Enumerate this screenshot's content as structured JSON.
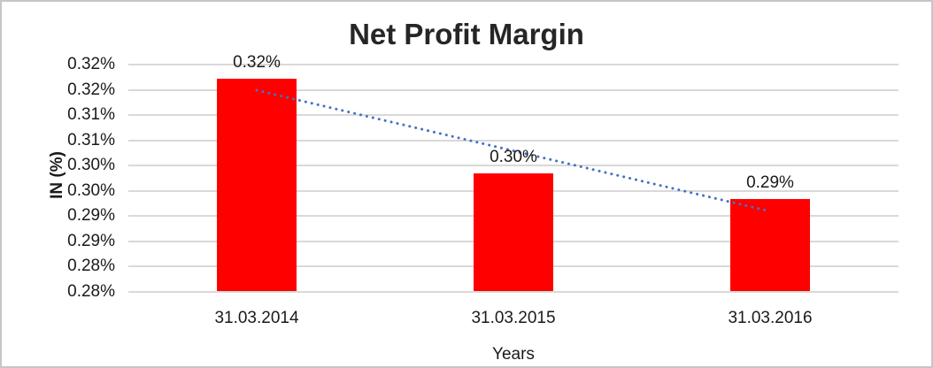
{
  "chart_data": {
    "type": "bar",
    "title": "Net Profit Margin",
    "xlabel": "Years",
    "ylabel": "IN (%)",
    "categories": [
      "31.03.2014",
      "31.03.2015",
      "31.03.2016"
    ],
    "values": [
      0.32,
      0.3,
      0.29
    ],
    "data_labels": [
      "0.32%",
      "0.30%",
      "0.29%"
    ],
    "values_plotted_estimate": [
      0.3172,
      0.2984,
      0.2933
    ],
    "unit": "percent",
    "ylim": [
      0.275,
      0.32
    ],
    "y_tick_interval": 0.005,
    "y_ticks": [
      {
        "value": 0.32,
        "label": "0.32%"
      },
      {
        "value": 0.315,
        "label": "0.32%"
      },
      {
        "value": 0.31,
        "label": "0.31%"
      },
      {
        "value": 0.305,
        "label": "0.31%"
      },
      {
        "value": 0.3,
        "label": "0.30%"
      },
      {
        "value": 0.295,
        "label": "0.30%"
      },
      {
        "value": 0.29,
        "label": "0.29%"
      },
      {
        "value": 0.285,
        "label": "0.29%"
      },
      {
        "value": 0.28,
        "label": "0.28%"
      },
      {
        "value": 0.275,
        "label": "0.28%"
      }
    ],
    "grid": true,
    "legend": "none",
    "trendline": {
      "type": "linear",
      "style": "dotted",
      "start_value": 0.3149,
      "end_value": 0.2909
    },
    "colors": {
      "bar": "#FF0000",
      "trendline": "#4472C4",
      "gridline": "#D9D9D9",
      "axis_text": "#1A1A1A",
      "title_text": "#262626",
      "chart_border": "#C6C6C6",
      "background": "#FFFFFF"
    }
  }
}
